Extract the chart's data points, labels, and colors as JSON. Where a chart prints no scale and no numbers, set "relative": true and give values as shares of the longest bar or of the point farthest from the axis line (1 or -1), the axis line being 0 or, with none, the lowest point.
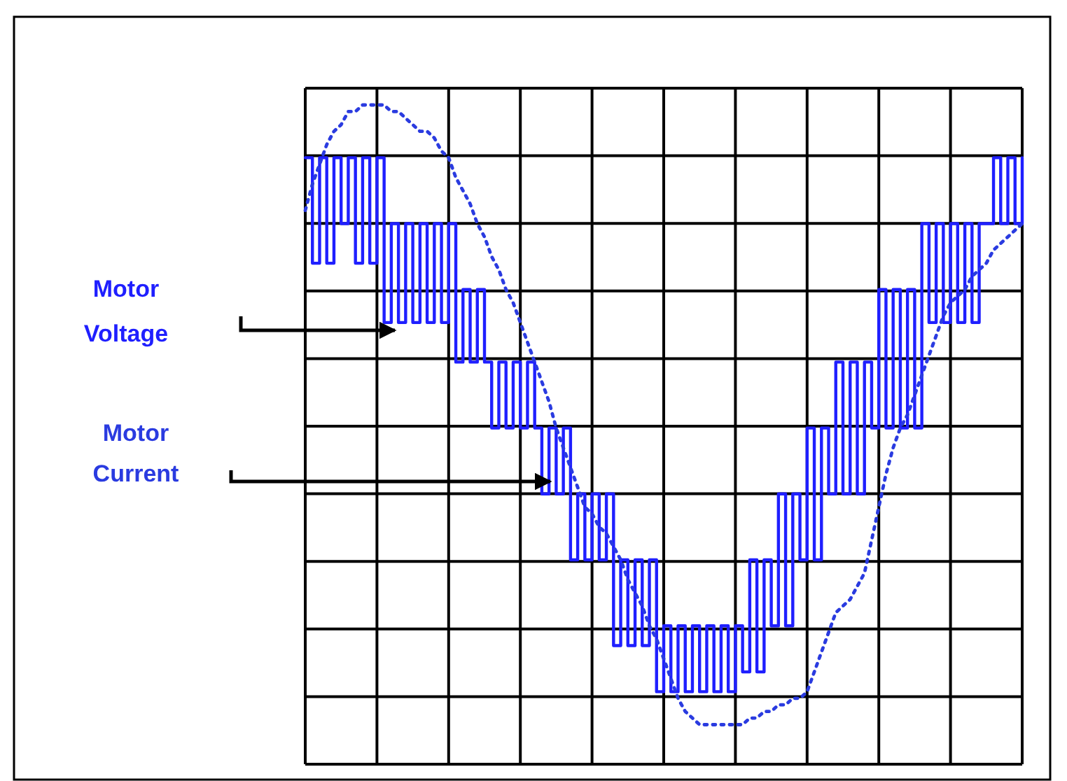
{
  "chart_data": {
    "type": "line",
    "relative": true,
    "grid": true,
    "legend": false,
    "marker": "none",
    "tick_labels": false,
    "categories": [
      null,
      null,
      null,
      null,
      null,
      null,
      null,
      null,
      null,
      null,
      null,
      null,
      null,
      null,
      null,
      null,
      null,
      null,
      null,
      null,
      null,
      null,
      null,
      null,
      null,
      null,
      null,
      null,
      null,
      null,
      null,
      null,
      null,
      null,
      null,
      null,
      null,
      null,
      null,
      null,
      null,
      null,
      null,
      null,
      null,
      null,
      null,
      null,
      null,
      null,
      null,
      null,
      null,
      null,
      null,
      null,
      null,
      null,
      null,
      null,
      null,
      null,
      null,
      null,
      null,
      null,
      null,
      null,
      null,
      null,
      null,
      null,
      null,
      null,
      null,
      null,
      null,
      null,
      null,
      null,
      null,
      null,
      null,
      null,
      null,
      null,
      null,
      null,
      null,
      null,
      null,
      null,
      null,
      null,
      null,
      null,
      null,
      null,
      null,
      null,
      null
    ],
    "series": [
      {
        "name": "Motor Voltage",
        "type": "step",
        "line_style": "solid",
        "color": "#1f1fff",
        "values": [
          0.92,
          0.76,
          0.92,
          0.76,
          0.92,
          0.82,
          0.92,
          0.76,
          0.92,
          0.76,
          0.92,
          0.67,
          0.82,
          0.67,
          0.82,
          0.67,
          0.82,
          0.67,
          0.82,
          0.67,
          0.82,
          0.61,
          0.72,
          0.61,
          0.72,
          0.61,
          0.51,
          0.61,
          0.51,
          0.61,
          0.51,
          0.61,
          0.51,
          0.41,
          0.51,
          0.41,
          0.51,
          0.31,
          0.41,
          0.31,
          0.41,
          0.31,
          0.41,
          0.18,
          0.31,
          0.18,
          0.31,
          0.18,
          0.31,
          0.11,
          0.21,
          0.11,
          0.21,
          0.11,
          0.21,
          0.11,
          0.21,
          0.11,
          0.21,
          0.11,
          0.21,
          0.14,
          0.31,
          0.14,
          0.31,
          0.21,
          0.41,
          0.21,
          0.41,
          0.31,
          0.51,
          0.31,
          0.51,
          0.41,
          0.61,
          0.41,
          0.61,
          0.41,
          0.61,
          0.51,
          0.72,
          0.51,
          0.72,
          0.51,
          0.72,
          0.51,
          0.82,
          0.67,
          0.82,
          0.67,
          0.82,
          0.67,
          0.82,
          0.67,
          0.82,
          0.82,
          0.92,
          0.82,
          0.92,
          0.82,
          0.92
        ]
      },
      {
        "name": "Motor Current",
        "type": "line",
        "line_style": "dotted",
        "color": "#2a3be0",
        "values": [
          0.84,
          0.88,
          0.91,
          0.94,
          0.96,
          0.97,
          0.99,
          0.99,
          1.0,
          1,
          1.0,
          1.0,
          0.99,
          0.99,
          0.98,
          0.97,
          0.96,
          0.96,
          0.95,
          0.93,
          0.92,
          0.89,
          0.87,
          0.85,
          0.82,
          0.8,
          0.77,
          0.75,
          0.72,
          0.7,
          0.67,
          0.64,
          0.61,
          0.58,
          0.55,
          0.51,
          0.48,
          0.45,
          0.42,
          0.39,
          0.38,
          0.36,
          0.35,
          0.33,
          0.31,
          0.28,
          0.26,
          0.24,
          0.21,
          0.19,
          0.16,
          0.13,
          0.1,
          0.08,
          0.07,
          0.06,
          0.06,
          0.06,
          0.06,
          0.06,
          0.06,
          0.06,
          0.07,
          0.07,
          0.08,
          0.08,
          0.09,
          0.09,
          0.1,
          0.1,
          0.11,
          0.14,
          0.17,
          0.2,
          0.23,
          0.24,
          0.25,
          0.27,
          0.29,
          0.34,
          0.39,
          0.44,
          0.48,
          0.51,
          0.53,
          0.56,
          0.59,
          0.62,
          0.65,
          0.68,
          0.7,
          0.71,
          0.72,
          0.74,
          0.75,
          0.76,
          0.78,
          0.79,
          0.8,
          0.81,
          0.82
        ]
      }
    ]
  }
}
